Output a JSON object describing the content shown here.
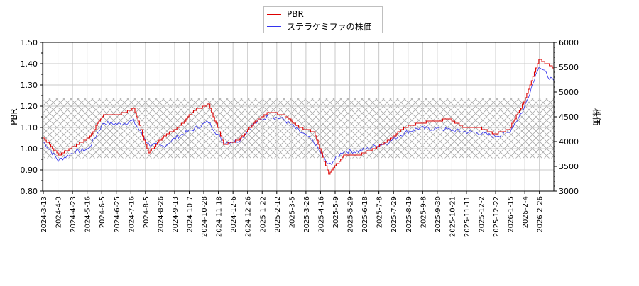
{
  "legend": {
    "items": [
      {
        "label": "PBR",
        "color": "#dd0000"
      },
      {
        "label": "ステラケミファの株価",
        "color": "#3333ee"
      }
    ]
  },
  "axes": {
    "left_label": "PBR",
    "right_label": "株価",
    "left_ticks": [
      "0.80",
      "0.90",
      "1.00",
      "1.10",
      "1.20",
      "1.30",
      "1.40",
      "1.50"
    ],
    "right_ticks": [
      "3000",
      "3500",
      "4000",
      "4500",
      "5000",
      "5500",
      "6000"
    ],
    "x_ticks": [
      "2024-3-13",
      "2024-4-3",
      "2024-4-23",
      "2024-5-16",
      "2024-6-5",
      "2024-6-25",
      "2024-7-16",
      "2024-8-5",
      "2024-8-26",
      "2024-9-13",
      "2024-10-7",
      "2024-10-28",
      "2024-11-18",
      "2024-12-6",
      "2024-12-26",
      "2025-1-22",
      "2025-2-12",
      "2025-3-5",
      "2025-3-26",
      "2025-4-16",
      "2025-5-9",
      "2025-5-29",
      "2025-6-18",
      "2025-7-8",
      "2025-7-29",
      "2025-8-19",
      "2025-9-8",
      "2025-9-30",
      "2025-10-21",
      "2025-11-11",
      "2025-12-2",
      "2025-12-22",
      "2026-1-15",
      "2026-2-4",
      "2026-2-26"
    ]
  },
  "chart_data": {
    "type": "line",
    "title": "",
    "xlabel": "",
    "ylabel": "PBR",
    "ylabel_right": "株価",
    "ylim": [
      0.8,
      1.5
    ],
    "ylim_right": [
      3000,
      6000
    ],
    "grid": true,
    "legend_position": "top-center",
    "band": {
      "from": 0.955,
      "to": 1.24,
      "style": "crosshatch",
      "color": "#aaaaaa"
    },
    "x": [
      "2024-3-13",
      "2024-4-3",
      "2024-4-23",
      "2024-5-16",
      "2024-6-5",
      "2024-6-25",
      "2024-7-16",
      "2024-8-5",
      "2024-8-26",
      "2024-9-13",
      "2024-10-7",
      "2024-10-28",
      "2024-11-18",
      "2024-12-6",
      "2024-12-26",
      "2025-1-22",
      "2025-2-12",
      "2025-3-5",
      "2025-3-26",
      "2025-4-16",
      "2025-5-9",
      "2025-5-29",
      "2025-6-18",
      "2025-7-8",
      "2025-7-29",
      "2025-8-19",
      "2025-9-8",
      "2025-9-30",
      "2025-10-21",
      "2025-11-11",
      "2025-12-2",
      "2025-12-22",
      "2026-1-15",
      "2026-2-4",
      "2026-2-26"
    ],
    "series": [
      {
        "name": "PBR",
        "axis": "left",
        "color": "#dd0000",
        "values": [
          1.05,
          0.97,
          1.01,
          1.05,
          1.16,
          1.16,
          1.19,
          0.98,
          1.06,
          1.1,
          1.18,
          1.21,
          1.02,
          1.04,
          1.12,
          1.17,
          1.16,
          1.1,
          1.08,
          0.88,
          0.97,
          0.97,
          1.0,
          1.04,
          1.1,
          1.12,
          1.13,
          1.14,
          1.1,
          1.1,
          1.07,
          1.09,
          1.22,
          1.42,
          1.38
        ]
      },
      {
        "name": "ステラケミファの株価",
        "axis": "right",
        "color": "#3333ee",
        "values": [
          4000,
          3620,
          3780,
          3850,
          4380,
          4350,
          4420,
          3950,
          3900,
          4110,
          4250,
          4400,
          3980,
          4020,
          4350,
          4520,
          4450,
          4220,
          4000,
          3520,
          3810,
          3800,
          3900,
          3990,
          4170,
          4270,
          4260,
          4240,
          4200,
          4180,
          4110,
          4180,
          4650,
          5530,
          5200
        ]
      }
    ]
  }
}
